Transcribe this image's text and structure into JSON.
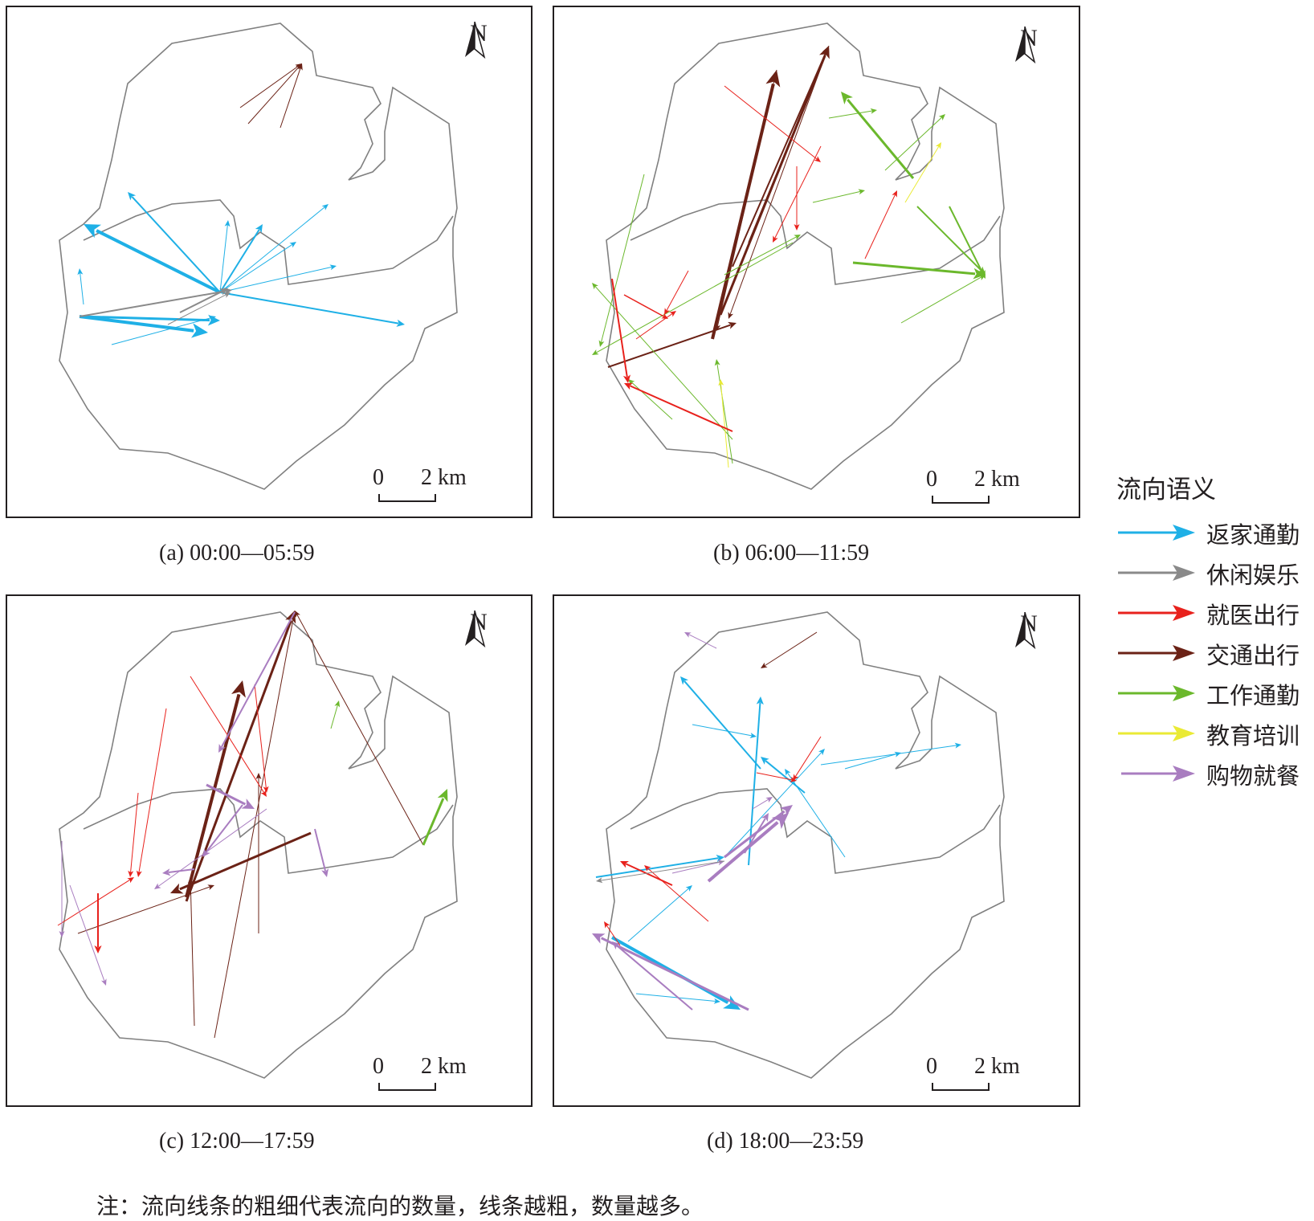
{
  "colors": {
    "return_commute": "#1fb0e6",
    "leisure": "#8a8a8a",
    "medical": "#e8211c",
    "transport": "#6b2216",
    "work_commute": "#6bb82c",
    "education": "#eaea35",
    "shopping": "#a97dc0",
    "boundary": "#808080"
  },
  "north_label": "N",
  "scale": {
    "zero": "0",
    "label": "2 km"
  },
  "panels": [
    {
      "caption": "(a)  00:00—05:59"
    },
    {
      "caption": "(b)  06:00—11:59"
    },
    {
      "caption": "(c)  12:00—17:59"
    },
    {
      "caption": "(d)  18:00—23:59"
    }
  ],
  "legend": {
    "title": "流向语义",
    "items": [
      {
        "label": "返家通勤",
        "color": "#1fb0e6"
      },
      {
        "label": "休闲娱乐",
        "color": "#8a8a8a"
      },
      {
        "label": "就医出行",
        "color": "#e8211c"
      },
      {
        "label": "交通出行",
        "color": "#6b2216"
      },
      {
        "label": "工作通勤",
        "color": "#6bb82c"
      },
      {
        "label": "教育培训",
        "color": "#eaea35"
      },
      {
        "label": "购物就餐",
        "color": "#a97dc0"
      }
    ]
  },
  "note": "注：流向线条的粗细代表流向的数量，线条越粗，数量越多。"
}
